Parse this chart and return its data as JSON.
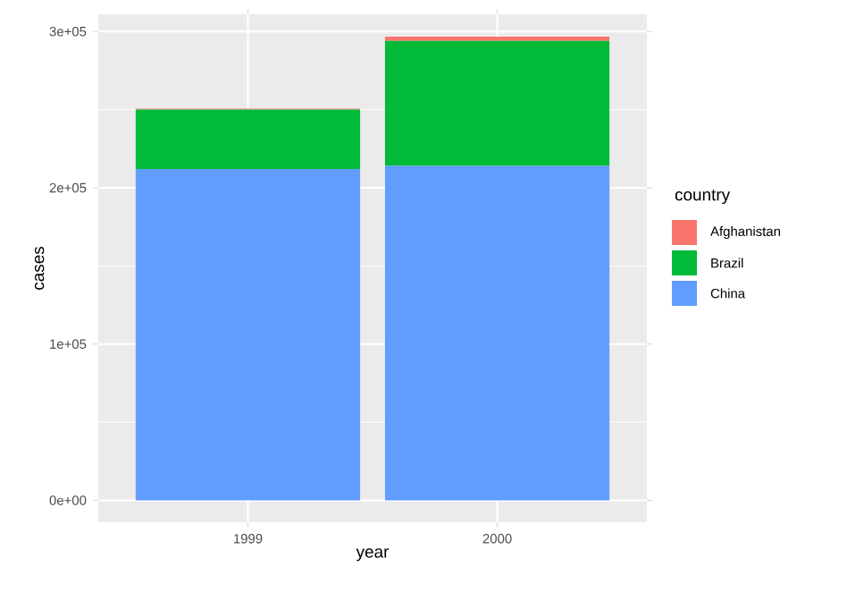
{
  "chart_data": {
    "type": "bar",
    "stacked": true,
    "xlabel": "year",
    "ylabel": "cases",
    "legend_title": "country",
    "legend": "right",
    "grid": true,
    "categories": [
      "1999",
      "2000"
    ],
    "series": [
      {
        "name": "China",
        "color": "#619cff",
        "values": [
          212000,
          214000
        ]
      },
      {
        "name": "Brazil",
        "color": "#00ba38",
        "values": [
          38000,
          80000
        ]
      },
      {
        "name": "Afghanistan",
        "color": "#f8766d",
        "values": [
          700,
          2700
        ]
      }
    ],
    "ylim": [
      -14000,
      311000
    ],
    "yticks": [
      {
        "value": 0,
        "label": "0e+00"
      },
      {
        "value": 100000,
        "label": "1e+05"
      },
      {
        "value": 200000,
        "label": "2e+05"
      },
      {
        "value": 300000,
        "label": "3e+05"
      }
    ]
  }
}
